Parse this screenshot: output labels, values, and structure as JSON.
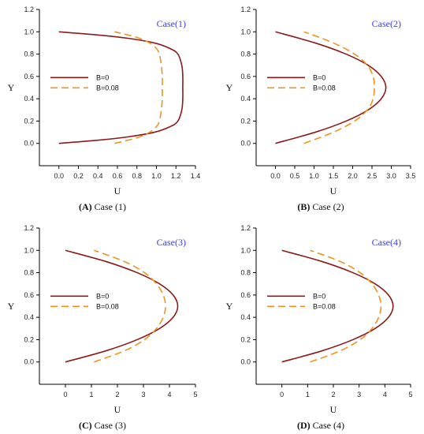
{
  "colors": {
    "b0": "#8b1a1a",
    "b008": "#f0921e",
    "case_label": "#3a3aff"
  },
  "legend": [
    "B=0",
    "B=0.08"
  ],
  "chart_data": [
    {
      "type": "line",
      "case_label": "Case(1)",
      "caption_letter": "(A)",
      "caption_text": " Case (1)",
      "xlabel": "U",
      "ylabel": "Y",
      "xlim": [
        -0.2,
        1.4
      ],
      "ylim": [
        -0.2,
        1.2
      ],
      "xticks": [
        "0.0",
        "0.2",
        "0.4",
        "0.6",
        "0.8",
        "1.0",
        "1.2",
        "1.4"
      ],
      "yticks": [
        "0.0",
        "0.2",
        "0.4",
        "0.6",
        "0.8",
        "1.0",
        "1.2"
      ],
      "series": [
        {
          "name": "B=0",
          "y": [
            0,
            0.03,
            0.06,
            0.1,
            0.15,
            0.2,
            0.3,
            0.4,
            0.5,
            0.6,
            0.7,
            0.8,
            0.85,
            0.9,
            0.94,
            0.97,
            1.0
          ],
          "x": [
            0.0,
            0.42,
            0.72,
            0.98,
            1.14,
            1.22,
            1.26,
            1.27,
            1.27,
            1.27,
            1.26,
            1.22,
            1.14,
            0.98,
            0.72,
            0.42,
            0.0
          ]
        },
        {
          "name": "B=0.08",
          "y": [
            0,
            0.05,
            0.1,
            0.15,
            0.2,
            0.3,
            0.4,
            0.5,
            0.6,
            0.7,
            0.8,
            0.85,
            0.9,
            0.95,
            1.0
          ],
          "x": [
            0.57,
            0.8,
            0.93,
            1.0,
            1.03,
            1.05,
            1.06,
            1.06,
            1.06,
            1.05,
            1.03,
            1.0,
            0.93,
            0.8,
            0.57
          ]
        }
      ]
    },
    {
      "type": "line",
      "case_label": "Case(2)",
      "caption_letter": "(B)",
      "caption_text": " Case (2)",
      "xlabel": "U",
      "ylabel": "Y",
      "xlim": [
        -0.5,
        3.5
      ],
      "ylim": [
        -0.2,
        1.2
      ],
      "xticks": [
        "0.0",
        "0.5",
        "1.0",
        "1.5",
        "2.0",
        "2.5",
        "3.0",
        "3.5"
      ],
      "yticks": [
        "0.0",
        "0.2",
        "0.4",
        "0.6",
        "0.8",
        "1.0",
        "1.2"
      ],
      "series": [
        {
          "name": "B=0",
          "y": [
            0,
            0.1,
            0.2,
            0.3,
            0.4,
            0.5,
            0.6,
            0.7,
            0.8,
            0.9,
            1.0
          ],
          "x": [
            0.0,
            1.03,
            1.83,
            2.4,
            2.74,
            2.86,
            2.74,
            2.4,
            1.83,
            1.03,
            0.0
          ]
        },
        {
          "name": "B=0.08",
          "y": [
            0,
            0.1,
            0.2,
            0.3,
            0.4,
            0.5,
            0.6,
            0.7,
            0.8,
            0.9,
            1.0
          ],
          "x": [
            0.74,
            1.5,
            2.05,
            2.38,
            2.53,
            2.56,
            2.53,
            2.38,
            2.05,
            1.5,
            0.74
          ]
        }
      ]
    },
    {
      "type": "line",
      "case_label": "Case(3)",
      "caption_letter": "(C)",
      "caption_text": " Case (3)",
      "xlabel": "U",
      "ylabel": "Y",
      "xlim": [
        -1,
        5
      ],
      "ylim": [
        -0.2,
        1.2
      ],
      "xticks": [
        "0",
        "1",
        "2",
        "3",
        "4",
        "5"
      ],
      "yticks": [
        "0.0",
        "0.2",
        "0.4",
        "0.6",
        "0.8",
        "1.0",
        "1.2"
      ],
      "series": [
        {
          "name": "B=0",
          "y": [
            0,
            0.1,
            0.2,
            0.3,
            0.4,
            0.5,
            0.6,
            0.7,
            0.8,
            0.9,
            1.0
          ],
          "x": [
            0.0,
            1.56,
            2.76,
            3.62,
            4.14,
            4.32,
            4.14,
            3.62,
            2.76,
            1.56,
            0.0
          ]
        },
        {
          "name": "B=0.08",
          "y": [
            0,
            0.1,
            0.2,
            0.3,
            0.4,
            0.5,
            0.6,
            0.7,
            0.8,
            0.9,
            1.0
          ],
          "x": [
            1.1,
            2.27,
            3.04,
            3.5,
            3.76,
            3.85,
            3.76,
            3.5,
            3.04,
            2.27,
            1.1
          ]
        }
      ]
    },
    {
      "type": "line",
      "case_label": "Case(4)",
      "caption_letter": "(D)",
      "caption_text": " Case (4)",
      "xlabel": "U",
      "ylabel": "Y",
      "xlim": [
        -1,
        5
      ],
      "ylim": [
        -0.2,
        1.2
      ],
      "xticks": [
        "0",
        "1",
        "2",
        "3",
        "4",
        "5"
      ],
      "yticks": [
        "0.0",
        "0.2",
        "0.4",
        "0.6",
        "0.8",
        "1.0",
        "1.2"
      ],
      "series": [
        {
          "name": "B=0",
          "y": [
            0,
            0.1,
            0.2,
            0.3,
            0.4,
            0.5,
            0.6,
            0.7,
            0.8,
            0.9,
            1.0
          ],
          "x": [
            0.0,
            1.56,
            2.76,
            3.62,
            4.14,
            4.32,
            4.14,
            3.62,
            2.76,
            1.56,
            0.0
          ]
        },
        {
          "name": "B=0.08",
          "y": [
            0,
            0.1,
            0.2,
            0.3,
            0.4,
            0.5,
            0.6,
            0.7,
            0.8,
            0.9,
            1.0
          ],
          "x": [
            1.1,
            2.27,
            3.04,
            3.5,
            3.76,
            3.85,
            3.76,
            3.5,
            3.04,
            2.27,
            1.1
          ]
        }
      ]
    }
  ]
}
